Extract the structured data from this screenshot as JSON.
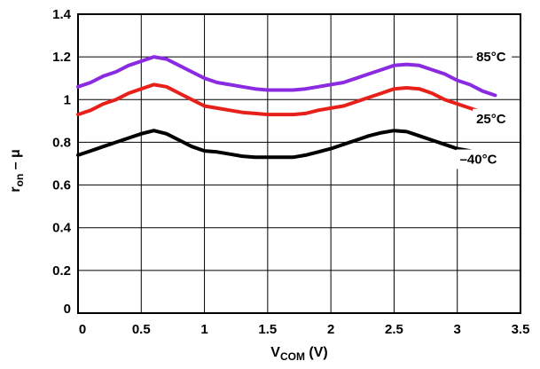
{
  "chart_data": {
    "type": "line",
    "title": "",
    "xlabel": {
      "main": "V",
      "sub": "COM",
      "suffix": " (V)"
    },
    "ylabel": {
      "main": "r",
      "sub": "on",
      "suffix": " – μ"
    },
    "xlim": [
      0,
      3.5
    ],
    "ylim": [
      0,
      1.4
    ],
    "xticks": [
      0,
      0.5,
      1,
      1.5,
      2,
      2.5,
      3,
      3.5
    ],
    "xtick_labels": [
      "0",
      "0.5",
      "1",
      "1.5",
      "2",
      "2.5",
      "3",
      "3.5"
    ],
    "yticks": [
      0,
      0.2,
      0.4,
      0.6,
      0.8,
      1,
      1.2,
      1.4
    ],
    "ytick_labels": [
      "0",
      "0.2",
      "0.4",
      "0.6",
      "0.8",
      "1",
      "1.2",
      "1.4"
    ],
    "grid": true,
    "legend": "none",
    "series": [
      {
        "name": "85°C",
        "color": "#8a2be2",
        "x": [
          0,
          0.1,
          0.2,
          0.3,
          0.4,
          0.5,
          0.6,
          0.7,
          0.8,
          0.9,
          1.0,
          1.1,
          1.2,
          1.3,
          1.4,
          1.5,
          1.6,
          1.7,
          1.8,
          1.9,
          2.0,
          2.1,
          2.2,
          2.3,
          2.4,
          2.5,
          2.6,
          2.7,
          2.8,
          2.9,
          3.0,
          3.1,
          3.2,
          3.3
        ],
        "y": [
          1.06,
          1.08,
          1.11,
          1.13,
          1.16,
          1.18,
          1.2,
          1.19,
          1.16,
          1.13,
          1.1,
          1.08,
          1.07,
          1.06,
          1.05,
          1.045,
          1.045,
          1.045,
          1.05,
          1.06,
          1.07,
          1.08,
          1.1,
          1.12,
          1.14,
          1.16,
          1.165,
          1.16,
          1.14,
          1.12,
          1.09,
          1.07,
          1.04,
          1.02
        ]
      },
      {
        "name": "25°C",
        "color": "#e8201a",
        "x": [
          0,
          0.1,
          0.2,
          0.3,
          0.4,
          0.5,
          0.6,
          0.7,
          0.8,
          0.9,
          1.0,
          1.1,
          1.2,
          1.3,
          1.4,
          1.5,
          1.6,
          1.7,
          1.8,
          1.9,
          2.0,
          2.1,
          2.2,
          2.3,
          2.4,
          2.5,
          2.6,
          2.7,
          2.8,
          2.9,
          3.0,
          3.1,
          3.2,
          3.3
        ],
        "y": [
          0.93,
          0.95,
          0.98,
          1.0,
          1.03,
          1.05,
          1.07,
          1.06,
          1.03,
          1.0,
          0.97,
          0.96,
          0.95,
          0.94,
          0.935,
          0.93,
          0.93,
          0.93,
          0.935,
          0.95,
          0.96,
          0.97,
          0.99,
          1.01,
          1.03,
          1.05,
          1.055,
          1.05,
          1.03,
          1.0,
          0.98,
          0.96,
          0.94,
          0.92
        ]
      },
      {
        "name": "–40°C",
        "color": "#000000",
        "x": [
          0,
          0.1,
          0.2,
          0.3,
          0.4,
          0.5,
          0.6,
          0.7,
          0.8,
          0.9,
          1.0,
          1.1,
          1.2,
          1.3,
          1.4,
          1.5,
          1.6,
          1.7,
          1.8,
          1.9,
          2.0,
          2.1,
          2.2,
          2.3,
          2.4,
          2.5,
          2.6,
          2.7,
          2.8,
          2.9,
          3.0,
          3.1,
          3.2,
          3.3
        ],
        "y": [
          0.74,
          0.76,
          0.78,
          0.8,
          0.82,
          0.84,
          0.855,
          0.84,
          0.81,
          0.78,
          0.76,
          0.755,
          0.745,
          0.735,
          0.73,
          0.73,
          0.73,
          0.73,
          0.74,
          0.755,
          0.77,
          0.79,
          0.81,
          0.83,
          0.845,
          0.855,
          0.85,
          0.83,
          0.81,
          0.79,
          0.77,
          0.76,
          0.75,
          0.73
        ]
      }
    ],
    "annotations": [
      {
        "text": "85°C",
        "x": 3.15,
        "y": 1.18
      },
      {
        "text": "25°C",
        "x": 3.15,
        "y": 0.89
      },
      {
        "text": "–40°C",
        "x": 3.02,
        "y": 0.7
      }
    ]
  }
}
